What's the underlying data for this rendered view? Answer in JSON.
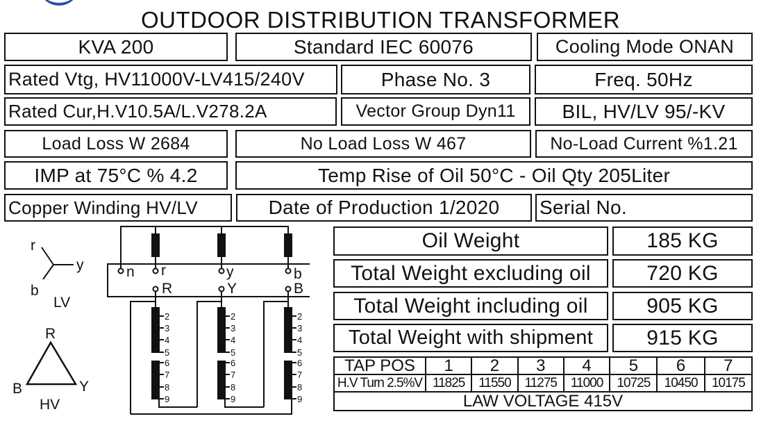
{
  "title": "OUTDOOR DISTRIBUTION TRANSFORMER",
  "logo_color": "#2a4fa0",
  "fields": {
    "kva": "KVA  200",
    "standard": "Standard  IEC  60076",
    "cooling": "Cooling Mode ONAN",
    "rated_vtg": "Rated Vtg, HV11000V-LV415/240V",
    "phase": "Phase No.  3",
    "freq": "Freq.  50Hz",
    "rated_cur": "Rated Cur,H.V10.5A/L.V278.2A",
    "vector": "Vector Group Dyn11",
    "bil": "BIL, HV/LV 95/-KV",
    "load_loss": "Load Loss W 2684",
    "no_load_loss": "No Load Loss W 467",
    "no_load_current": "No-Load Current %1.21",
    "imp": "IMP at 75°C  %  4.2",
    "temp": "Temp Rise of Oil  50°C - Oil Qty  205Liter",
    "winding": "Copper Winding HV/LV",
    "date": "Date of Production  1/2020",
    "serial": "Serial No."
  },
  "weights": [
    {
      "label": "Oil Weight",
      "value": "185 KG"
    },
    {
      "label": "Total Weight excluding oil",
      "value": "720 KG"
    },
    {
      "label": "Total Weight including oil",
      "value": "905 KG"
    },
    {
      "label": "Total Weight with shipment",
      "value": "915 KG"
    }
  ],
  "tap_table": {
    "header_label": "TAP POS",
    "positions": [
      "1",
      "2",
      "3",
      "4",
      "5",
      "6",
      "7"
    ],
    "row_label": "H.V Turn 2.5%V",
    "voltages": [
      "11825",
      "11550",
      "11275",
      "11000",
      "10725",
      "10450",
      "10175"
    ],
    "footer": "LAW VOLTAGE 415V"
  },
  "diagram": {
    "lv_labels": {
      "r": "r",
      "y": "y",
      "b": "b",
      "title": "LV"
    },
    "hv_labels": {
      "R": "R",
      "Y": "Y",
      "B": "B",
      "title": "HV"
    },
    "terminals_lv": [
      "n",
      "r",
      "y",
      "b"
    ],
    "terminals_hv": [
      "R",
      "Y",
      "B"
    ],
    "taps": [
      "2",
      "3",
      "4",
      "5",
      "6",
      "7",
      "8",
      "9"
    ]
  }
}
